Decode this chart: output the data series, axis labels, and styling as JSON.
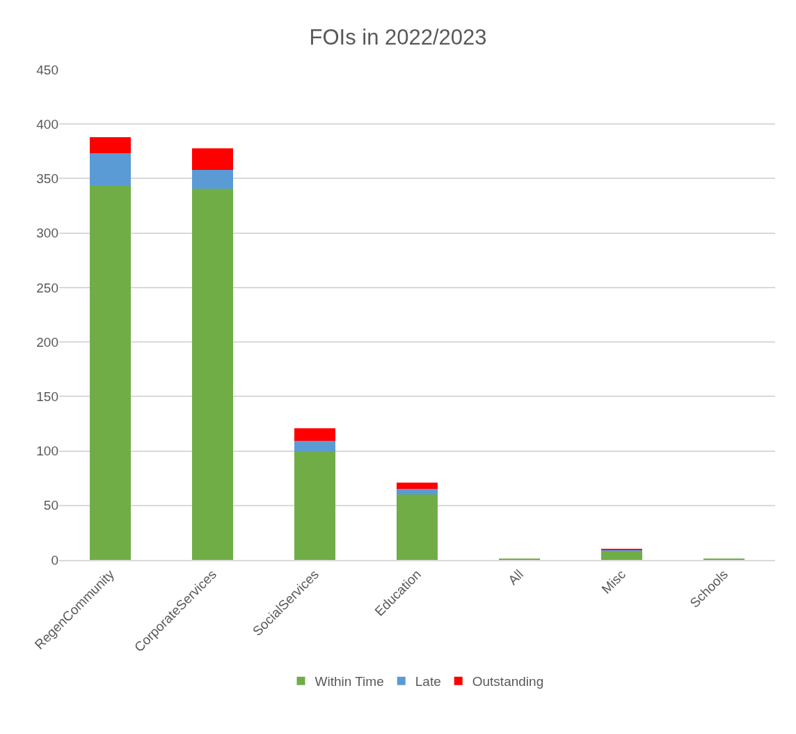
{
  "chart_data": {
    "type": "bar",
    "title": "FOIs in 2022/2023",
    "categories": [
      "RegenCommunity",
      "CorporateServices",
      "SocialServices",
      "Education",
      "All",
      "Misc",
      "Schools"
    ],
    "stacked": true,
    "series": [
      {
        "name": "Within Time",
        "color": "#70ad47",
        "values": [
          344,
          341,
          99,
          60,
          1,
          8,
          1
        ]
      },
      {
        "name": "Late",
        "color": "#5b9bd5",
        "values": [
          29,
          17,
          10,
          5,
          0,
          1,
          0
        ]
      },
      {
        "name": "Outstanding",
        "color": "#ff0000",
        "values": [
          15,
          20,
          12,
          6,
          0,
          1,
          0
        ]
      }
    ],
    "ylim": [
      0,
      450
    ],
    "yticks": [
      0,
      50,
      100,
      150,
      200,
      250,
      300,
      350,
      400,
      450
    ],
    "grid": "y",
    "legend": "bottom"
  }
}
